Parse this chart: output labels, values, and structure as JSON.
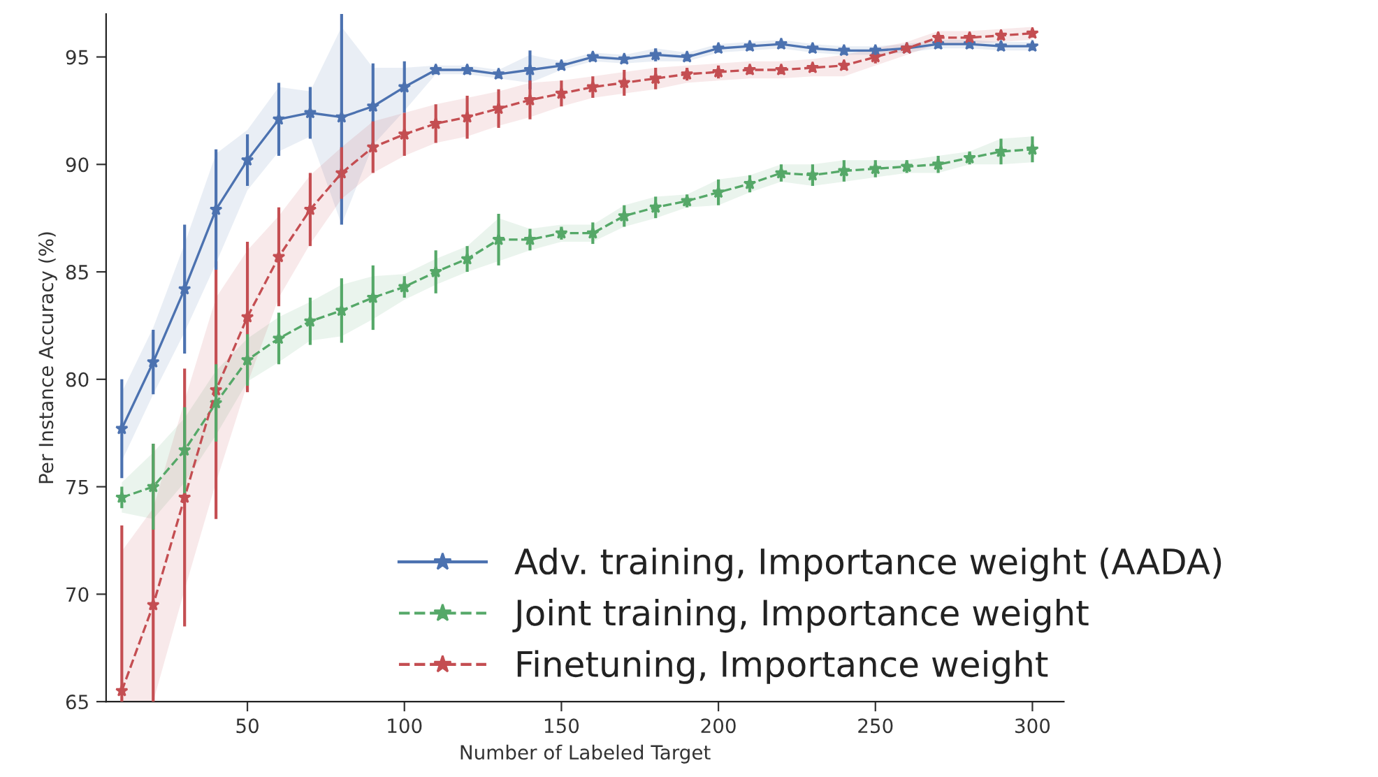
{
  "chart_data": {
    "type": "line",
    "xlabel": "Number of Labeled Target",
    "ylabel": "Per Instance Accuracy (%)",
    "x": [
      10,
      20,
      30,
      40,
      50,
      60,
      70,
      80,
      90,
      100,
      110,
      120,
      130,
      140,
      150,
      160,
      170,
      180,
      190,
      200,
      210,
      220,
      230,
      240,
      250,
      260,
      270,
      280,
      290,
      300
    ],
    "xlim": [
      5,
      310
    ],
    "ylim": [
      65,
      97
    ],
    "xticks": [
      50,
      100,
      150,
      200,
      250,
      300
    ],
    "yticks": [
      65,
      70,
      75,
      80,
      85,
      90,
      95
    ],
    "grid": false,
    "legend": "bottom right",
    "marker": "star",
    "series": [
      {
        "name": "Adv. training, Importance weight (AADA)",
        "color": "#4c72b0",
        "line_style": "solid",
        "values": [
          77.7,
          80.8,
          84.2,
          87.9,
          90.2,
          92.1,
          92.4,
          92.2,
          92.7,
          93.6,
          94.4,
          94.4,
          94.2,
          94.4,
          94.6,
          95.0,
          94.9,
          95.1,
          95.0,
          95.4,
          95.5,
          95.6,
          95.4,
          95.3,
          95.3,
          95.4,
          95.6,
          95.6,
          95.5,
          95.5
        ],
        "errors": [
          2.3,
          1.5,
          3.0,
          2.8,
          1.2,
          1.7,
          1.2,
          [
            87.2,
            97
          ],
          2.0,
          1.2,
          0.2,
          0.2,
          0.2,
          0.9,
          0.2,
          0.2,
          0.2,
          0.3,
          0.2,
          0.2,
          0.2,
          0.2,
          0.2,
          0.2,
          0.2,
          null,
          0.2,
          0.2,
          0.2,
          0.2
        ],
        "lower": [
          76.2,
          79.3,
          82.2,
          85.4,
          88.8,
          90.6,
          91.3,
          87.2,
          90.9,
          92.5,
          94.2,
          94.2,
          94.0,
          93.8,
          94.4,
          94.8,
          94.7,
          94.8,
          94.8,
          95.2,
          95.3,
          95.4,
          95.2,
          95.1,
          95.1,
          95.2,
          95.4,
          95.4,
          95.3,
          95.3
        ],
        "upper": [
          79.4,
          82.4,
          86.3,
          90.5,
          91.6,
          93.6,
          93.4,
          96.4,
          94.5,
          94.5,
          94.6,
          94.6,
          94.4,
          95.1,
          94.8,
          95.2,
          95.1,
          95.4,
          95.2,
          95.6,
          95.7,
          95.8,
          95.6,
          95.5,
          95.5,
          95.6,
          95.8,
          95.8,
          95.7,
          95.7
        ]
      },
      {
        "name": "Joint training, Importance weight",
        "color": "#55a868",
        "line_style": "dashed",
        "values": [
          74.5,
          75.0,
          76.7,
          78.9,
          80.9,
          81.9,
          82.7,
          83.2,
          83.8,
          84.3,
          85.0,
          85.6,
          86.5,
          86.5,
          86.8,
          86.8,
          87.6,
          88.0,
          88.3,
          88.7,
          89.1,
          89.6,
          89.5,
          89.7,
          89.8,
          89.9,
          90.0,
          90.3,
          90.6,
          90.7
        ],
        "errors": [
          0.5,
          2.0,
          2.0,
          1.8,
          1.2,
          1.2,
          1.1,
          1.5,
          1.5,
          0.5,
          1.0,
          0.6,
          1.2,
          0.5,
          0.3,
          0.5,
          0.5,
          0.5,
          0.3,
          0.6,
          0.4,
          0.4,
          0.5,
          0.5,
          0.4,
          0.3,
          0.4,
          0.3,
          0.6,
          0.6
        ],
        "lower": [
          73.8,
          73.5,
          75.2,
          77.4,
          79.9,
          80.8,
          81.8,
          82.0,
          82.8,
          83.7,
          84.4,
          85.0,
          85.5,
          86.0,
          86.4,
          86.4,
          87.1,
          87.5,
          88.0,
          88.1,
          88.7,
          89.2,
          89.0,
          89.2,
          89.4,
          89.6,
          89.6,
          90.0,
          90.0,
          90.1
        ],
        "upper": [
          75.2,
          76.6,
          78.2,
          80.4,
          81.9,
          82.9,
          83.6,
          84.4,
          84.8,
          84.9,
          85.6,
          86.2,
          87.5,
          87.0,
          87.2,
          87.2,
          88.1,
          88.5,
          88.6,
          89.3,
          89.5,
          90.0,
          90.0,
          90.2,
          90.2,
          90.2,
          90.4,
          90.6,
          91.2,
          91.3
        ]
      },
      {
        "name": "Finetuning, Importance weight",
        "color": "#c44e52",
        "line_style": "dashed",
        "values": [
          65.5,
          69.5,
          74.5,
          79.5,
          82.9,
          85.7,
          87.9,
          89.6,
          90.8,
          91.4,
          91.9,
          92.2,
          92.6,
          93.0,
          93.3,
          93.6,
          93.8,
          94.0,
          94.2,
          94.3,
          94.4,
          94.4,
          94.5,
          94.6,
          95.0,
          95.4,
          95.9,
          95.9,
          96.0,
          96.1
        ],
        "errors": [
          [
            65,
            73.2
          ],
          [
            65,
            77.0
          ],
          6.0,
          6.0,
          3.5,
          2.3,
          1.7,
          1.2,
          1.2,
          1.0,
          0.9,
          1.0,
          0.9,
          0.9,
          0.6,
          0.5,
          0.6,
          0.5,
          0.3,
          0.3,
          0.2,
          0.2,
          0.2,
          0.2,
          0.3,
          null,
          0.2,
          0.2,
          0.2,
          0.2
        ],
        "lower": [
          65,
          65,
          70.2,
          75.2,
          79.8,
          83.8,
          86.3,
          88.4,
          89.6,
          90.4,
          91.0,
          91.3,
          91.8,
          92.2,
          92.7,
          93.1,
          93.3,
          93.5,
          93.8,
          93.9,
          94.0,
          94.0,
          94.1,
          94.1,
          94.6,
          95.1,
          95.6,
          95.6,
          95.7,
          95.8
        ],
        "upper": [
          72.0,
          74.0,
          79.0,
          83.8,
          86.0,
          87.6,
          89.5,
          90.8,
          92.0,
          92.4,
          92.8,
          93.1,
          93.4,
          93.8,
          93.9,
          94.1,
          94.3,
          94.5,
          94.6,
          94.7,
          94.8,
          94.8,
          94.9,
          95.1,
          95.4,
          95.7,
          96.2,
          96.2,
          96.3,
          96.4
        ]
      }
    ]
  }
}
